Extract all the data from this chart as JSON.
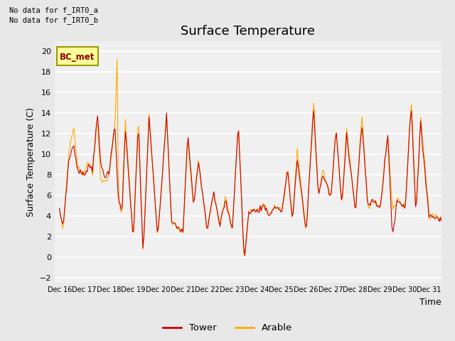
{
  "title": "Surface Temperature",
  "ylabel": "Surface Temperature (C)",
  "xlabel": "Time",
  "ylim": [
    -2.5,
    21
  ],
  "yticks": [
    -2,
    0,
    2,
    4,
    6,
    8,
    10,
    12,
    14,
    16,
    18,
    20
  ],
  "x_labels": [
    "Dec 16",
    "Dec 17",
    "Dec 18",
    "Dec 19",
    "Dec 20",
    "Dec 21",
    "Dec 22",
    "Dec 23",
    "Dec 24",
    "Dec 25",
    "Dec 26",
    "Dec 27",
    "Dec 28",
    "Dec 29",
    "Dec 30",
    "Dec 31"
  ],
  "no_data_text_1": "No data for f_IRT0_a",
  "no_data_text_2": "No data for f_IRT0_b",
  "bc_met_label": "BC_met",
  "tower_color": "#cc0000",
  "arable_color": "#ffaa00",
  "legend_tower": "Tower",
  "legend_arable": "Arable",
  "bg_color": "#e8e8e8",
  "plot_bg_color": "#f0f0f0",
  "title_fontsize": 13,
  "label_fontsize": 9,
  "tick_fontsize": 8
}
